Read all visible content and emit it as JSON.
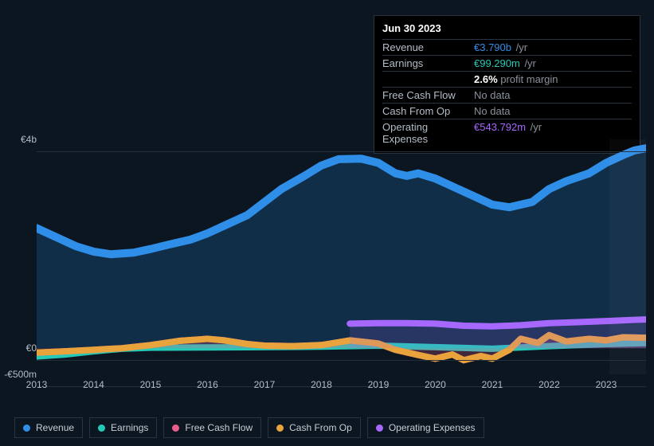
{
  "tooltip": {
    "date": "Jun 30 2023",
    "rows": [
      {
        "label": "Revenue",
        "value": "€3.790b",
        "value_color": "#2f8fe8",
        "unit": "/yr"
      },
      {
        "label": "Earnings",
        "value": "€99.290m",
        "value_color": "#25c9b8",
        "unit": "/yr",
        "extra": {
          "value": "2.6%",
          "text": "profit margin",
          "value_color": "#ffffff"
        }
      },
      {
        "label": "Free Cash Flow",
        "value": "No data",
        "value_color": "#8a919a",
        "unit": ""
      },
      {
        "label": "Cash From Op",
        "value": "No data",
        "value_color": "#8a919a",
        "unit": ""
      },
      {
        "label": "Operating Expenses",
        "value": "€543.792m",
        "value_color": "#a768ff",
        "unit": "/yr"
      }
    ]
  },
  "chart": {
    "type": "area",
    "background_color": "#0b1621",
    "grid_color": "#232f3d",
    "text_color": "#b4bcc6",
    "ylim": [
      -500,
      4000
    ],
    "y_ticks": [
      {
        "v": 4000,
        "label": "€4b"
      },
      {
        "v": 0,
        "label": "€0"
      },
      {
        "v": -500,
        "label": "-€500m"
      }
    ],
    "x_start": 2013,
    "x_end": 2023.7,
    "x_ticks": [
      2013,
      2014,
      2015,
      2016,
      2017,
      2018,
      2019,
      2020,
      2021,
      2022,
      2023
    ],
    "future_from": 2023.05,
    "series": [
      {
        "key": "revenue",
        "name": "Revenue",
        "color": "#2f8fe8",
        "fill": "rgba(47,143,232,0.20)",
        "line_width": 2.5,
        "area": true,
        "points": [
          [
            2012.7,
            2400
          ],
          [
            2013.0,
            2300
          ],
          [
            2013.3,
            2150
          ],
          [
            2013.7,
            1950
          ],
          [
            2014.0,
            1850
          ],
          [
            2014.3,
            1800
          ],
          [
            2014.7,
            1830
          ],
          [
            2015.0,
            1900
          ],
          [
            2015.3,
            1980
          ],
          [
            2015.7,
            2080
          ],
          [
            2016.0,
            2200
          ],
          [
            2016.3,
            2350
          ],
          [
            2016.7,
            2550
          ],
          [
            2017.0,
            2800
          ],
          [
            2017.3,
            3050
          ],
          [
            2017.7,
            3300
          ],
          [
            2018.0,
            3500
          ],
          [
            2018.3,
            3620
          ],
          [
            2018.7,
            3630
          ],
          [
            2019.0,
            3550
          ],
          [
            2019.3,
            3350
          ],
          [
            2019.5,
            3300
          ],
          [
            2019.7,
            3350
          ],
          [
            2020.0,
            3250
          ],
          [
            2020.3,
            3100
          ],
          [
            2020.7,
            2900
          ],
          [
            2021.0,
            2750
          ],
          [
            2021.3,
            2700
          ],
          [
            2021.7,
            2800
          ],
          [
            2022.0,
            3050
          ],
          [
            2022.3,
            3200
          ],
          [
            2022.7,
            3350
          ],
          [
            2023.0,
            3550
          ],
          [
            2023.3,
            3700
          ],
          [
            2023.5,
            3790
          ],
          [
            2023.7,
            3830
          ]
        ]
      },
      {
        "key": "earnings",
        "name": "Earnings",
        "color": "#25c9b8",
        "fill": "none",
        "line_width": 2,
        "area": false,
        "points": [
          [
            2012.7,
            -180
          ],
          [
            2013.5,
            -120
          ],
          [
            2014.0,
            -60
          ],
          [
            2014.5,
            -10
          ],
          [
            2015.0,
            10
          ],
          [
            2016.0,
            15
          ],
          [
            2017.0,
            20
          ],
          [
            2018.0,
            30
          ],
          [
            2019.0,
            50
          ],
          [
            2020.0,
            20
          ],
          [
            2021.0,
            -10
          ],
          [
            2022.0,
            40
          ],
          [
            2023.0,
            80
          ],
          [
            2023.7,
            99
          ]
        ]
      },
      {
        "key": "fcf",
        "name": "Free Cash Flow",
        "color": "#e85d8b",
        "fill": "rgba(232,93,139,0.25)",
        "line_width": 2,
        "area": true,
        "points": [
          [
            2012.7,
            -100
          ],
          [
            2013.5,
            -60
          ],
          [
            2014.0,
            -30
          ],
          [
            2014.5,
            0
          ],
          [
            2015.0,
            60
          ],
          [
            2015.5,
            140
          ],
          [
            2016.0,
            180
          ],
          [
            2016.3,
            150
          ],
          [
            2016.7,
            80
          ],
          [
            2017.0,
            50
          ],
          [
            2017.5,
            40
          ],
          [
            2018.0,
            60
          ],
          [
            2018.5,
            150
          ],
          [
            2019.0,
            90
          ],
          [
            2019.3,
            -30
          ],
          [
            2019.7,
            -130
          ],
          [
            2020.0,
            -200
          ],
          [
            2020.3,
            -120
          ],
          [
            2020.5,
            -230
          ],
          [
            2020.8,
            -150
          ],
          [
            2021.0,
            -200
          ],
          [
            2021.3,
            -30
          ],
          [
            2021.5,
            180
          ],
          [
            2021.8,
            100
          ],
          [
            2022.0,
            250
          ],
          [
            2022.3,
            130
          ],
          [
            2022.7,
            180
          ],
          [
            2023.0,
            150
          ],
          [
            2023.3,
            210
          ],
          [
            2023.7,
            200
          ]
        ]
      },
      {
        "key": "cashop",
        "name": "Cash From Op",
        "color": "#e8a33d",
        "fill": "none",
        "line_width": 2,
        "area": false,
        "points": [
          [
            2012.7,
            -100
          ],
          [
            2013.5,
            -60
          ],
          [
            2014.0,
            -30
          ],
          [
            2014.5,
            0
          ],
          [
            2015.0,
            60
          ],
          [
            2015.5,
            140
          ],
          [
            2016.0,
            180
          ],
          [
            2016.3,
            150
          ],
          [
            2016.7,
            80
          ],
          [
            2017.0,
            50
          ],
          [
            2017.5,
            40
          ],
          [
            2018.0,
            60
          ],
          [
            2018.5,
            150
          ],
          [
            2019.0,
            90
          ],
          [
            2019.3,
            -30
          ],
          [
            2019.7,
            -130
          ],
          [
            2020.0,
            -200
          ],
          [
            2020.3,
            -120
          ],
          [
            2020.5,
            -230
          ],
          [
            2020.8,
            -150
          ],
          [
            2021.0,
            -200
          ],
          [
            2021.3,
            -30
          ],
          [
            2021.5,
            180
          ],
          [
            2021.8,
            100
          ],
          [
            2022.0,
            250
          ],
          [
            2022.3,
            130
          ],
          [
            2022.7,
            180
          ],
          [
            2023.0,
            150
          ],
          [
            2023.3,
            210
          ],
          [
            2023.7,
            200
          ]
        ]
      },
      {
        "key": "opex",
        "name": "Operating Expenses",
        "color": "#a768ff",
        "fill": "rgba(167,104,255,0.15)",
        "line_width": 2,
        "area": true,
        "points": [
          [
            2018.5,
            470
          ],
          [
            2019.0,
            480
          ],
          [
            2019.5,
            480
          ],
          [
            2020.0,
            470
          ],
          [
            2020.5,
            430
          ],
          [
            2021.0,
            420
          ],
          [
            2021.5,
            440
          ],
          [
            2022.0,
            480
          ],
          [
            2022.5,
            500
          ],
          [
            2023.0,
            520
          ],
          [
            2023.5,
            544
          ],
          [
            2023.7,
            550
          ]
        ]
      }
    ]
  },
  "legend": [
    {
      "label": "Revenue",
      "color": "#2f8fe8"
    },
    {
      "label": "Earnings",
      "color": "#25c9b8"
    },
    {
      "label": "Free Cash Flow",
      "color": "#e85d8b"
    },
    {
      "label": "Cash From Op",
      "color": "#e8a33d"
    },
    {
      "label": "Operating Expenses",
      "color": "#a768ff"
    }
  ]
}
